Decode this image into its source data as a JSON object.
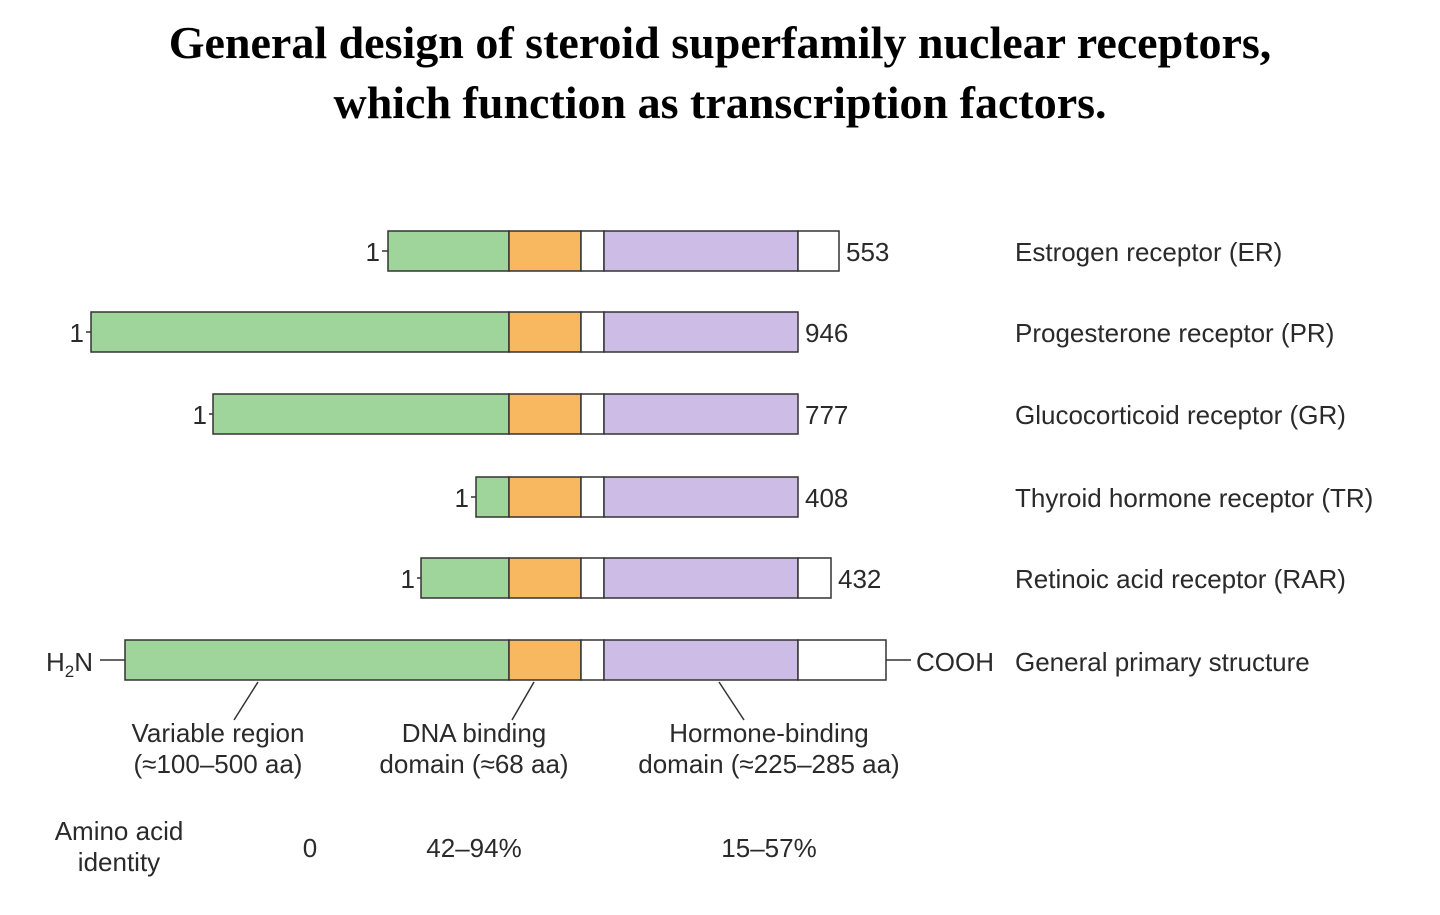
{
  "title": {
    "line1": "General design of steroid superfamily nuclear receptors,",
    "line2": "which function as transcription factors."
  },
  "colors": {
    "variable": "#9fd49b",
    "dna_binding": "#f7b860",
    "hinge": "#ffffff",
    "hormone_binding": "#cdbde6",
    "c_terminal": "#ffffff",
    "outline": "#333333"
  },
  "receptors": [
    {
      "name": "Estrogen receptor (ER)",
      "start_label": "1",
      "end_label": "553"
    },
    {
      "name": "Progesterone receptor (PR)",
      "start_label": "1",
      "end_label": "946"
    },
    {
      "name": "Glucocorticoid receptor (GR)",
      "start_label": "1",
      "end_label": "777"
    },
    {
      "name": "Thyroid hormone receptor (TR)",
      "start_label": "1",
      "end_label": "408"
    },
    {
      "name": "Retinoic acid receptor (RAR)",
      "start_label": "1",
      "end_label": "432"
    }
  ],
  "general": {
    "name": "General primary structure",
    "n_terminus": "H",
    "n_terminus_subscript": "2",
    "n_terminus_suffix": "N",
    "c_terminus": "COOH"
  },
  "domains": [
    {
      "line1": "Variable region",
      "line2": "(≈100–500 aa)"
    },
    {
      "line1": "DNA binding",
      "line2": "domain (≈68 aa)"
    },
    {
      "line1": "Hormone-binding",
      "line2": "domain (≈225–285 aa)"
    }
  ],
  "identity": {
    "label_line1": "Amino acid",
    "label_line2": "identity",
    "values": [
      "0",
      "42–94%",
      "15–57%"
    ]
  }
}
